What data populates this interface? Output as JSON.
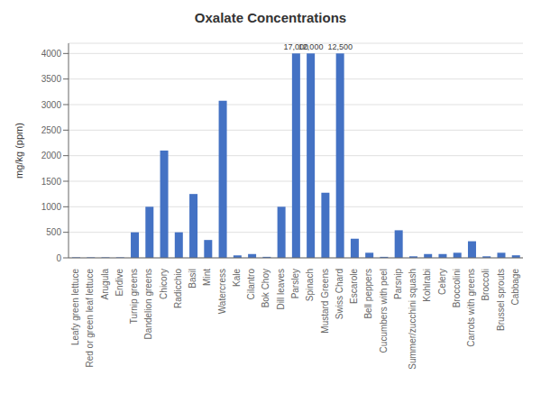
{
  "chart_data": {
    "type": "bar",
    "title": "Oxalate Concentrations",
    "ylabel": "mg/kg (ppm)",
    "categories": [
      "Leafy green lettuce",
      "Red or green leaf lettuce",
      "Arugula",
      "Endive",
      "Turnip greens",
      "Dandelion greens",
      "Chicory",
      "Radicchio",
      "Basil",
      "Mint",
      "Watercress",
      "Kale",
      "Cilantro",
      "Bok Choy",
      "Dill leaves",
      "Parsley",
      "Spinach",
      "Mustard Greens",
      "Swiss Chard",
      "Escarole",
      "Bell peppers",
      "Cucumbers with peel",
      "Parsnip",
      "Summer/zucchini squash",
      "Kohlrabi",
      "Celery",
      "Broccolini",
      "Carrots with greens",
      "Broccoli",
      "Brussel sprouts",
      "Cabbage"
    ],
    "values": [
      10,
      10,
      10,
      10,
      500,
      1000,
      2100,
      500,
      1250,
      350,
      3075,
      50,
      75,
      20,
      1000,
      4000,
      4000,
      1275,
      4000,
      375,
      100,
      20,
      540,
      30,
      75,
      75,
      100,
      325,
      30,
      100,
      50
    ],
    "color": "#4472c4",
    "ylim": [
      0,
      4200
    ],
    "yticks": [
      0,
      500,
      1000,
      1500,
      2000,
      2500,
      3000,
      3500,
      4000
    ],
    "grid": true,
    "annotations": [
      {
        "category": "Parsley",
        "text": "17,000"
      },
      {
        "category": "Spinach",
        "text": "12,000"
      },
      {
        "category": "Swiss Chard",
        "text": "12,500"
      }
    ]
  }
}
